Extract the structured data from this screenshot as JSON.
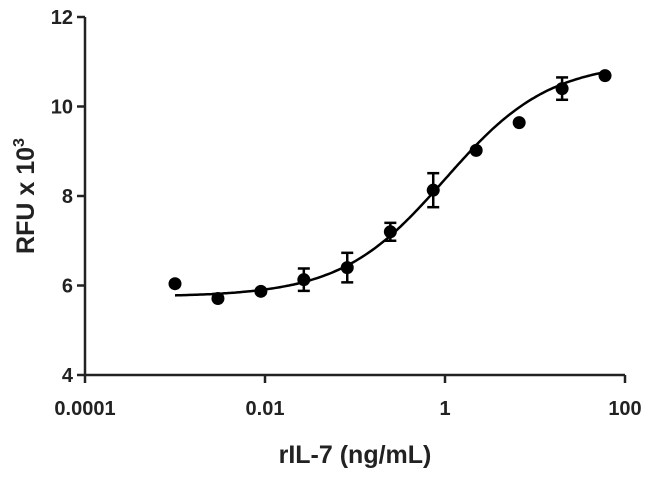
{
  "chart_data": {
    "type": "scatter",
    "title": "",
    "xlabel": "rIL-7 (ng/mL)",
    "ylabel_main": "RFU x 10",
    "ylabel_sup": "3",
    "x_scale": "log",
    "xlim": [
      0.0001,
      100
    ],
    "ylim": [
      4,
      12
    ],
    "x_ticks": [
      0.0001,
      0.01,
      1,
      100
    ],
    "x_tick_labels": [
      "0.0001",
      "0.01",
      "1",
      "100"
    ],
    "y_ticks": [
      4,
      6,
      8,
      10,
      12
    ],
    "y_tick_labels": [
      "4",
      "6",
      "8",
      "10",
      "12"
    ],
    "grid": false,
    "color": "#000000",
    "points": [
      {
        "x": 0.001,
        "y": 6.04,
        "err": 0
      },
      {
        "x": 0.003,
        "y": 5.71,
        "err": 0
      },
      {
        "x": 0.009,
        "y": 5.87,
        "err": 0
      },
      {
        "x": 0.027,
        "y": 6.13,
        "err": 0.25
      },
      {
        "x": 0.082,
        "y": 6.4,
        "err": 0.33
      },
      {
        "x": 0.247,
        "y": 7.2,
        "err": 0.2
      },
      {
        "x": 0.74,
        "y": 8.13,
        "err": 0.38
      },
      {
        "x": 2.22,
        "y": 9.02,
        "err": 0
      },
      {
        "x": 6.67,
        "y": 9.64,
        "err": 0
      },
      {
        "x": 20,
        "y": 10.4,
        "err": 0.25
      },
      {
        "x": 60,
        "y": 10.69,
        "err": 0
      }
    ],
    "fit": {
      "model": "4PL",
      "bottom": 5.75,
      "top": 11.0,
      "ec50": 1.0,
      "hill": 0.75
    }
  }
}
